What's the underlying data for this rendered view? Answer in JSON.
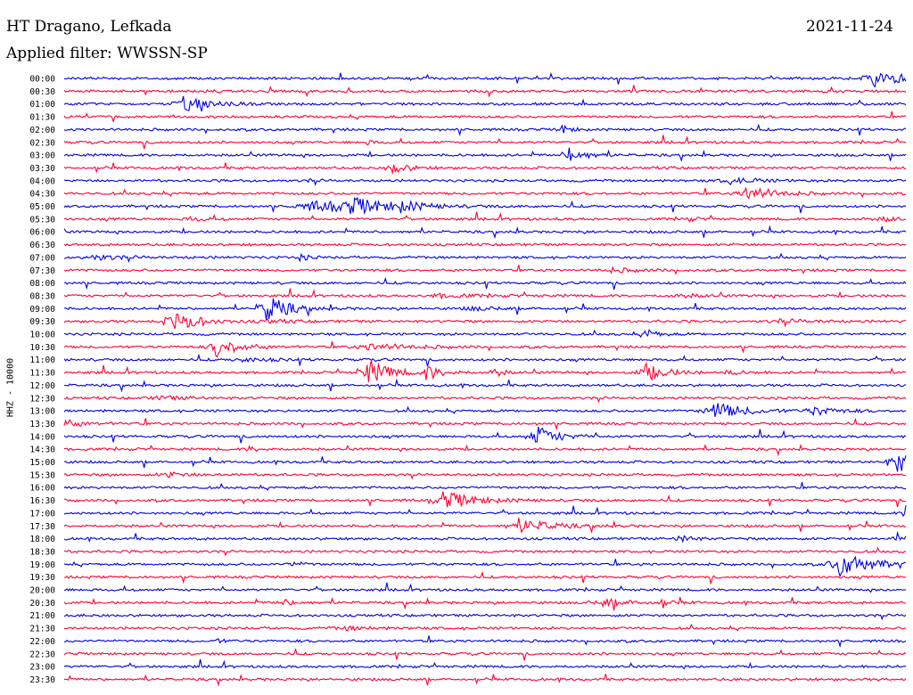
{
  "header": {
    "station": "HT Dragano, Lefkada",
    "date": "2021-11-24",
    "filter": "Applied filter: WWSSN-SP"
  },
  "chart_data": {
    "type": "line",
    "title": "HT Dragano, Lefkada",
    "ylabel": "HHZ - 10000",
    "colors": [
      "#0000e0",
      "#ff0033"
    ],
    "rows": [
      {
        "label": "00:00",
        "color": "blue",
        "events": [
          [
            96,
            9,
            3
          ]
        ]
      },
      {
        "label": "00:30",
        "color": "red",
        "events": []
      },
      {
        "label": "01:00",
        "color": "blue",
        "events": [
          [
            14,
            8,
            2.5
          ]
        ]
      },
      {
        "label": "01:30",
        "color": "red",
        "events": []
      },
      {
        "label": "02:00",
        "color": "blue",
        "events": [
          [
            59,
            5,
            1
          ]
        ]
      },
      {
        "label": "02:30",
        "color": "red",
        "events": [
          [
            36,
            3,
            0.5
          ]
        ]
      },
      {
        "label": "03:00",
        "color": "blue",
        "events": [
          [
            60,
            10,
            1.5
          ]
        ]
      },
      {
        "label": "03:30",
        "color": "red",
        "events": [
          [
            39,
            6,
            1.5
          ]
        ]
      },
      {
        "label": "04:00",
        "color": "blue",
        "events": [
          [
            79,
            4,
            2.5
          ],
          [
            29,
            1.5,
            1
          ]
        ]
      },
      {
        "label": "04:30",
        "color": "red",
        "events": [
          [
            81,
            9,
            2.5
          ]
        ]
      },
      {
        "label": "05:00",
        "color": "blue",
        "events": [
          [
            29,
            6,
            4
          ],
          [
            34,
            8,
            4
          ],
          [
            40,
            4,
            2
          ]
        ]
      },
      {
        "label": "05:30",
        "color": "red",
        "events": [
          [
            15,
            2,
            2
          ],
          [
            97,
            2,
            4
          ],
          [
            74,
            2,
            1
          ]
        ]
      },
      {
        "label": "06:00",
        "color": "blue",
        "events": []
      },
      {
        "label": "06:30",
        "color": "red",
        "events": []
      },
      {
        "label": "07:00",
        "color": "blue",
        "events": [
          [
            3,
            3,
            3
          ],
          [
            28,
            3,
            1
          ]
        ]
      },
      {
        "label": "07:30",
        "color": "red",
        "events": [
          [
            65,
            2,
            3
          ]
        ]
      },
      {
        "label": "08:00",
        "color": "blue",
        "events": []
      },
      {
        "label": "08:30",
        "color": "red",
        "events": [
          [
            44,
            2,
            4
          ],
          [
            73,
            2,
            2
          ]
        ]
      },
      {
        "label": "09:00",
        "color": "blue",
        "events": [
          [
            24,
            16,
            2
          ],
          [
            48,
            2,
            3
          ]
        ]
      },
      {
        "label": "09:30",
        "color": "red",
        "events": [
          [
            13,
            15,
            2
          ],
          [
            24,
            2,
            2
          ],
          [
            85,
            2,
            3
          ]
        ]
      },
      {
        "label": "10:00",
        "color": "blue",
        "events": [
          [
            69,
            6,
            1
          ]
        ]
      },
      {
        "label": "10:30",
        "color": "red",
        "events": [
          [
            18,
            12,
            2
          ],
          [
            36,
            4,
            4
          ]
        ]
      },
      {
        "label": "11:00",
        "color": "blue",
        "events": [
          [
            21,
            2,
            3
          ]
        ]
      },
      {
        "label": "11:30",
        "color": "red",
        "events": [
          [
            36,
            16,
            2
          ],
          [
            43,
            8,
            1.5
          ],
          [
            51,
            6,
            0.8
          ],
          [
            69,
            10,
            2
          ],
          [
            79,
            3,
            1
          ]
        ]
      },
      {
        "label": "12:00",
        "color": "blue",
        "events": []
      },
      {
        "label": "12:30",
        "color": "red",
        "events": [
          [
            11,
            2,
            3
          ]
        ]
      },
      {
        "label": "13:00",
        "color": "blue",
        "events": [
          [
            77,
            10,
            3
          ],
          [
            89,
            5,
            2
          ]
        ]
      },
      {
        "label": "13:30",
        "color": "red",
        "events": [
          [
            0,
            4,
            2
          ]
        ]
      },
      {
        "label": "14:00",
        "color": "blue",
        "events": [
          [
            56,
            12,
            2
          ]
        ]
      },
      {
        "label": "14:30",
        "color": "red",
        "events": [
          [
            22,
            3,
            1
          ]
        ]
      },
      {
        "label": "15:00",
        "color": "blue",
        "events": [
          [
            99,
            14,
            2.5
          ]
        ]
      },
      {
        "label": "15:30",
        "color": "red",
        "events": [
          [
            12,
            3,
            2
          ]
        ]
      },
      {
        "label": "16:00",
        "color": "blue",
        "events": []
      },
      {
        "label": "16:30",
        "color": "red",
        "events": [
          [
            45,
            10,
            3
          ]
        ]
      },
      {
        "label": "17:00",
        "color": "blue",
        "events": [
          [
            100,
            10,
            1
          ]
        ]
      },
      {
        "label": "17:30",
        "color": "red",
        "events": [
          [
            54,
            8,
            3
          ]
        ]
      },
      {
        "label": "18:00",
        "color": "blue",
        "events": [
          [
            73,
            6,
            1
          ],
          [
            99,
            6,
            1
          ]
        ]
      },
      {
        "label": "18:30",
        "color": "red",
        "events": []
      },
      {
        "label": "19:00",
        "color": "blue",
        "events": [
          [
            92,
            14,
            3
          ],
          [
            27,
            3,
            1
          ]
        ]
      },
      {
        "label": "19:30",
        "color": "red",
        "events": []
      },
      {
        "label": "20:00",
        "color": "blue",
        "events": []
      },
      {
        "label": "20:30",
        "color": "red",
        "events": [
          [
            64,
            4,
            3
          ],
          [
            26,
            3,
            1.5
          ],
          [
            71,
            3,
            1
          ]
        ]
      },
      {
        "label": "21:00",
        "color": "blue",
        "events": []
      },
      {
        "label": "21:30",
        "color": "red",
        "events": [
          [
            33,
            2,
            3
          ]
        ]
      },
      {
        "label": "22:00",
        "color": "blue",
        "events": [
          [
            18,
            2,
            1
          ]
        ]
      },
      {
        "label": "22:30",
        "color": "red",
        "events": []
      },
      {
        "label": "23:00",
        "color": "blue",
        "events": []
      },
      {
        "label": "23:30",
        "color": "red",
        "events": []
      }
    ]
  }
}
